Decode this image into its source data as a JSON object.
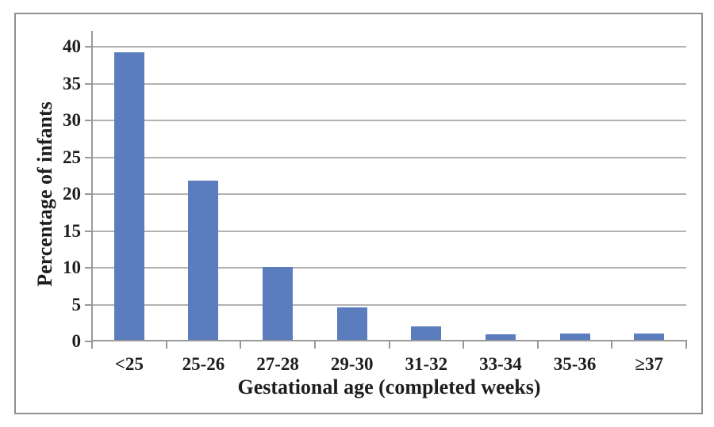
{
  "chart_data": {
    "type": "bar",
    "title": "",
    "categories": [
      "<25",
      "25-26",
      "27-28",
      "29-30",
      "31-32",
      "33-34",
      "35-36",
      "≥37"
    ],
    "values": [
      39.2,
      21.8,
      10.1,
      4.6,
      2.0,
      1.0,
      1.1,
      1.1
    ],
    "xlabel": "Gestational age (completed weeks)",
    "ylabel": "Percentage of infants",
    "ylim": [
      0,
      40
    ],
    "yticks": [
      0,
      5,
      10,
      15,
      20,
      25,
      30,
      35,
      40
    ],
    "grid": "horizontal-major",
    "legend": "none",
    "colors": {
      "bar": "#5b7dbd",
      "gridline": "#b2b2b2",
      "axis": "#999999",
      "frame_border": "#909090",
      "text": "#1e1e1e",
      "background": "#ffffff"
    }
  }
}
